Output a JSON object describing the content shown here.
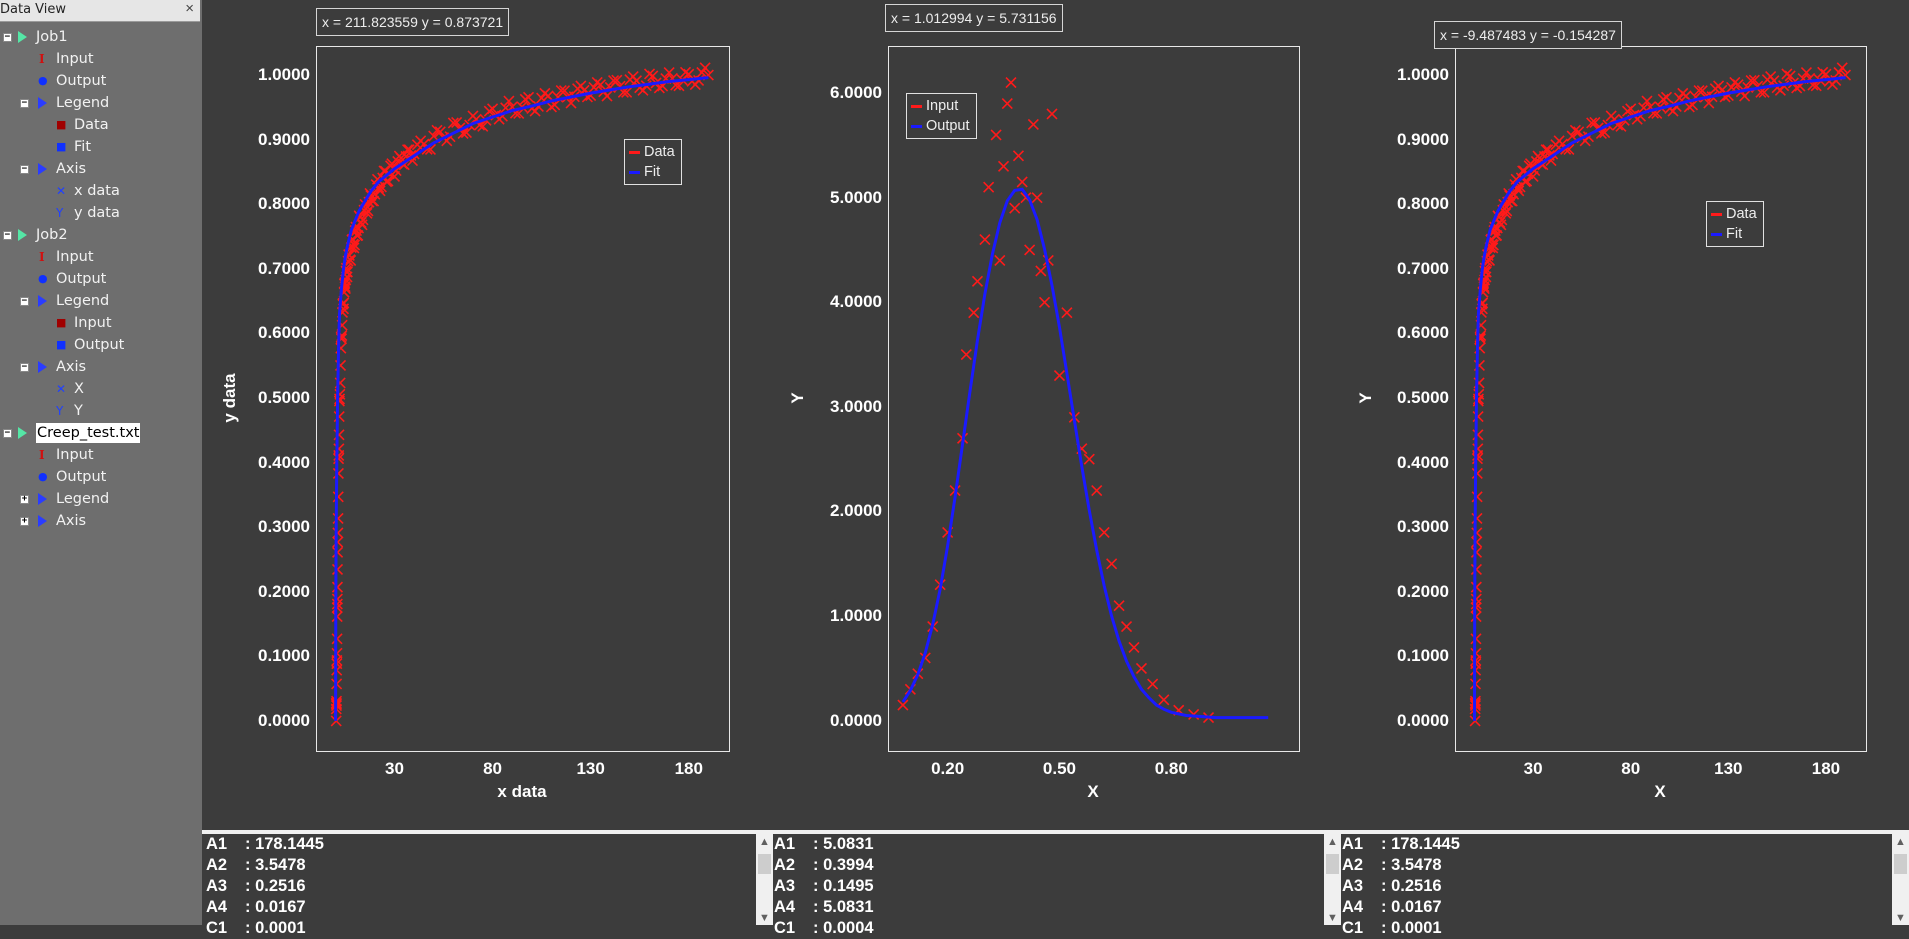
{
  "sidebar": {
    "title": "Data View",
    "close_icon": "×",
    "items": [
      {
        "label": "Job1",
        "kind": "job",
        "expander": "−",
        "level": 0
      },
      {
        "label": "Input",
        "kind": "input",
        "level": 1
      },
      {
        "label": "Output",
        "kind": "output",
        "level": 1
      },
      {
        "label": "Legend",
        "kind": "legend",
        "expander": "−",
        "level": 1
      },
      {
        "label": "Data",
        "kind": "dot-red",
        "level": 2
      },
      {
        "label": "Fit",
        "kind": "dot-blue",
        "level": 2
      },
      {
        "label": "Axis",
        "kind": "legend",
        "expander": "−",
        "level": 1
      },
      {
        "label": "x data",
        "kind": "x-axis",
        "level": 2
      },
      {
        "label": "y data",
        "kind": "y-axis",
        "level": 2
      },
      {
        "label": "Job2",
        "kind": "job",
        "expander": "−",
        "level": 0
      },
      {
        "label": "Input",
        "kind": "input",
        "level": 1
      },
      {
        "label": "Output",
        "kind": "output",
        "level": 1
      },
      {
        "label": "Legend",
        "kind": "legend",
        "expander": "−",
        "level": 1
      },
      {
        "label": "Input",
        "kind": "dot-red",
        "level": 2
      },
      {
        "label": "Output",
        "kind": "dot-blue",
        "level": 2
      },
      {
        "label": "Axis",
        "kind": "legend",
        "expander": "−",
        "level": 1
      },
      {
        "label": "X",
        "kind": "x-axis",
        "level": 2
      },
      {
        "label": "Y",
        "kind": "y-axis",
        "level": 2
      },
      {
        "label": "Creep_test.txt",
        "kind": "job",
        "expander": "−",
        "level": 0,
        "selected": true
      },
      {
        "label": "Input",
        "kind": "input",
        "level": 1
      },
      {
        "label": "Output",
        "kind": "output",
        "level": 1
      },
      {
        "label": "Legend",
        "kind": "legend",
        "expander": "+",
        "level": 1
      },
      {
        "label": "Axis",
        "kind": "legend",
        "expander": "+",
        "level": 1
      }
    ]
  },
  "colors": {
    "data": "#ff1a1a",
    "fit": "#1a1aff",
    "background": "#3c3c3c",
    "sidebar": "#6e6e6e"
  },
  "chart_data": [
    {
      "type": "scatter",
      "coord_readout": "x = 211.823559 y = 0.873721",
      "xlabel": "x data",
      "ylabel": "y data",
      "xlim": [
        -10,
        200
      ],
      "ylim": [
        -0.045,
        1.045
      ],
      "yticks": [
        "0.0000",
        "0.1000",
        "0.2000",
        "0.3000",
        "0.4000",
        "0.5000",
        "0.6000",
        "0.7000",
        "0.8000",
        "0.9000",
        "1.0000"
      ],
      "xticks": [
        "30",
        "80",
        "130",
        "180"
      ],
      "legend_loc": "upper-right",
      "series": [
        {
          "name": "Data",
          "marker": "x",
          "color": "#ff1a1a",
          "x": [
            0.3,
            0.5,
            0.8,
            1,
            1.5,
            2,
            3,
            4,
            5,
            6,
            8,
            10,
            12,
            15,
            18,
            22,
            26,
            30,
            35,
            40,
            50,
            60,
            70,
            80,
            90,
            100,
            110,
            120,
            130,
            140,
            150,
            160,
            170,
            180,
            190
          ],
          "y": [
            0.0,
            0.05,
            0.15,
            0.25,
            0.4,
            0.5,
            0.6,
            0.65,
            0.68,
            0.7,
            0.73,
            0.75,
            0.77,
            0.79,
            0.81,
            0.83,
            0.845,
            0.855,
            0.87,
            0.88,
            0.9,
            0.915,
            0.925,
            0.94,
            0.95,
            0.955,
            0.962,
            0.968,
            0.975,
            0.98,
            0.985,
            0.99,
            0.993,
            0.996,
            1.0
          ]
        },
        {
          "name": "Fit",
          "marker": "line",
          "color": "#1a1aff",
          "x": [
            0,
            0.1,
            0.3,
            0.6,
            1,
            1.5,
            2,
            3,
            4,
            5,
            6,
            8,
            10,
            12,
            15,
            18,
            22,
            26,
            30,
            35,
            40,
            50,
            60,
            70,
            80,
            90,
            100,
            110,
            120,
            130,
            140,
            150,
            160,
            170,
            180,
            190
          ],
          "y": [
            0.0,
            0.18,
            0.3,
            0.4,
            0.5,
            0.58,
            0.63,
            0.67,
            0.7,
            0.72,
            0.735,
            0.76,
            0.775,
            0.79,
            0.805,
            0.82,
            0.835,
            0.845,
            0.855,
            0.865,
            0.875,
            0.895,
            0.91,
            0.925,
            0.935,
            0.945,
            0.952,
            0.96,
            0.966,
            0.972,
            0.977,
            0.982,
            0.986,
            0.99,
            0.993,
            0.996
          ]
        }
      ]
    },
    {
      "type": "scatter",
      "coord_readout": "x = 1.012994 y = 5.731156",
      "xlabel": "X",
      "ylabel": "Y",
      "xlim": [
        0.04,
        1.14
      ],
      "ylim": [
        -0.28,
        6.45
      ],
      "yticks": [
        "0.0000",
        "1.0000",
        "2.0000",
        "3.0000",
        "4.0000",
        "5.0000",
        "6.0000"
      ],
      "xticks": [
        "0.20",
        "0.50",
        "0.80"
      ],
      "legend_loc": "upper-left",
      "series": [
        {
          "name": "Input",
          "marker": "x",
          "color": "#ff1a1a",
          "x": [
            0.08,
            0.1,
            0.12,
            0.14,
            0.16,
            0.18,
            0.2,
            0.22,
            0.24,
            0.25,
            0.27,
            0.28,
            0.3,
            0.31,
            0.33,
            0.34,
            0.35,
            0.36,
            0.37,
            0.38,
            0.39,
            0.4,
            0.41,
            0.42,
            0.43,
            0.44,
            0.45,
            0.46,
            0.47,
            0.48,
            0.5,
            0.52,
            0.54,
            0.56,
            0.58,
            0.6,
            0.62,
            0.64,
            0.66,
            0.68,
            0.7,
            0.72,
            0.75,
            0.78,
            0.82,
            0.86,
            0.9
          ],
          "y": [
            0.15,
            0.3,
            0.45,
            0.6,
            0.9,
            1.3,
            1.8,
            2.2,
            2.7,
            3.5,
            3.9,
            4.2,
            4.6,
            5.1,
            5.6,
            4.4,
            5.3,
            5.9,
            6.1,
            4.9,
            5.4,
            5.15,
            5.0,
            4.5,
            5.7,
            5.0,
            4.3,
            4.0,
            4.4,
            5.8,
            3.3,
            3.9,
            2.9,
            2.6,
            2.5,
            2.2,
            1.8,
            1.5,
            1.1,
            0.9,
            0.7,
            0.5,
            0.35,
            0.2,
            0.1,
            0.06,
            0.03
          ]
        },
        {
          "name": "Output",
          "marker": "line",
          "color": "#1a1aff",
          "x": [
            0.08,
            0.1,
            0.12,
            0.14,
            0.16,
            0.18,
            0.2,
            0.22,
            0.24,
            0.26,
            0.28,
            0.3,
            0.32,
            0.34,
            0.36,
            0.38,
            0.4,
            0.42,
            0.44,
            0.46,
            0.48,
            0.5,
            0.52,
            0.54,
            0.56,
            0.58,
            0.6,
            0.62,
            0.64,
            0.66,
            0.68,
            0.7,
            0.72,
            0.74,
            0.76,
            0.78,
            0.8,
            0.84,
            0.88,
            0.92,
            0.96,
            1.0,
            1.06
          ],
          "y": [
            0.18,
            0.29,
            0.44,
            0.65,
            0.92,
            1.26,
            1.67,
            2.14,
            2.64,
            3.15,
            3.64,
            4.08,
            4.46,
            4.76,
            4.97,
            5.07,
            5.08,
            4.98,
            4.79,
            4.51,
            4.16,
            3.76,
            3.32,
            2.87,
            2.43,
            2.01,
            1.63,
            1.29,
            1.0,
            0.76,
            0.57,
            0.42,
            0.3,
            0.22,
            0.15,
            0.11,
            0.08,
            0.05,
            0.04,
            0.03,
            0.03,
            0.03,
            0.03
          ]
        }
      ]
    },
    {
      "type": "scatter",
      "coord_readout": "x = -9.487483 y = -0.154287",
      "xlabel": "X",
      "ylabel": "Y",
      "xlim": [
        -10,
        200
      ],
      "ylim": [
        -0.045,
        1.045
      ],
      "yticks": [
        "0.0000",
        "0.1000",
        "0.2000",
        "0.3000",
        "0.4000",
        "0.5000",
        "0.6000",
        "0.7000",
        "0.8000",
        "0.9000",
        "1.0000"
      ],
      "xticks": [
        "30",
        "80",
        "130",
        "180"
      ],
      "legend_loc": "center-right",
      "series": [
        {
          "name": "Data",
          "marker": "x",
          "color": "#ff1a1a",
          "x": [
            0.3,
            0.5,
            0.8,
            1,
            1.5,
            2,
            3,
            4,
            5,
            6,
            8,
            10,
            12,
            15,
            18,
            22,
            26,
            30,
            35,
            40,
            50,
            60,
            70,
            80,
            90,
            100,
            110,
            120,
            130,
            140,
            150,
            160,
            170,
            180,
            190
          ],
          "y": [
            0.0,
            0.05,
            0.15,
            0.25,
            0.4,
            0.5,
            0.6,
            0.65,
            0.68,
            0.7,
            0.73,
            0.75,
            0.77,
            0.79,
            0.81,
            0.83,
            0.845,
            0.855,
            0.87,
            0.88,
            0.9,
            0.915,
            0.925,
            0.94,
            0.95,
            0.955,
            0.962,
            0.968,
            0.975,
            0.98,
            0.985,
            0.99,
            0.993,
            0.996,
            1.0
          ]
        },
        {
          "name": "Fit",
          "marker": "line",
          "color": "#1a1aff",
          "x": [
            0,
            0.1,
            0.3,
            0.6,
            1,
            1.5,
            2,
            3,
            4,
            5,
            6,
            8,
            10,
            12,
            15,
            18,
            22,
            26,
            30,
            35,
            40,
            50,
            60,
            70,
            80,
            90,
            100,
            110,
            120,
            130,
            140,
            150,
            160,
            170,
            180,
            190
          ],
          "y": [
            0.0,
            0.18,
            0.3,
            0.4,
            0.5,
            0.58,
            0.63,
            0.67,
            0.7,
            0.72,
            0.735,
            0.76,
            0.775,
            0.79,
            0.805,
            0.82,
            0.835,
            0.845,
            0.855,
            0.865,
            0.875,
            0.895,
            0.91,
            0.925,
            0.935,
            0.945,
            0.952,
            0.96,
            0.966,
            0.972,
            0.977,
            0.982,
            0.986,
            0.99,
            0.993,
            0.996
          ]
        }
      ]
    }
  ],
  "params": [
    {
      "rows": [
        [
          "A1",
          ": 178.1445"
        ],
        [
          "A2",
          ": 3.5478"
        ],
        [
          "A3",
          ": 0.2516"
        ],
        [
          "A4",
          ": 0.0167"
        ],
        [
          "C1",
          ": 0.0001"
        ]
      ]
    },
    {
      "rows": [
        [
          "A1",
          ": 5.0831"
        ],
        [
          "A2",
          ": 0.3994"
        ],
        [
          "A3",
          ": 0.1495"
        ],
        [
          "A4",
          ": 5.0831"
        ],
        [
          "C1",
          ": 0.0004"
        ]
      ]
    },
    {
      "rows": [
        [
          "A1",
          ": 178.1445"
        ],
        [
          "A2",
          ": 3.5478"
        ],
        [
          "A3",
          ": 0.2516"
        ],
        [
          "A4",
          ": 0.0167"
        ],
        [
          "C1",
          ": 0.0001"
        ]
      ]
    }
  ],
  "scroll_up_icon": "▲",
  "scroll_down_icon": "▼"
}
